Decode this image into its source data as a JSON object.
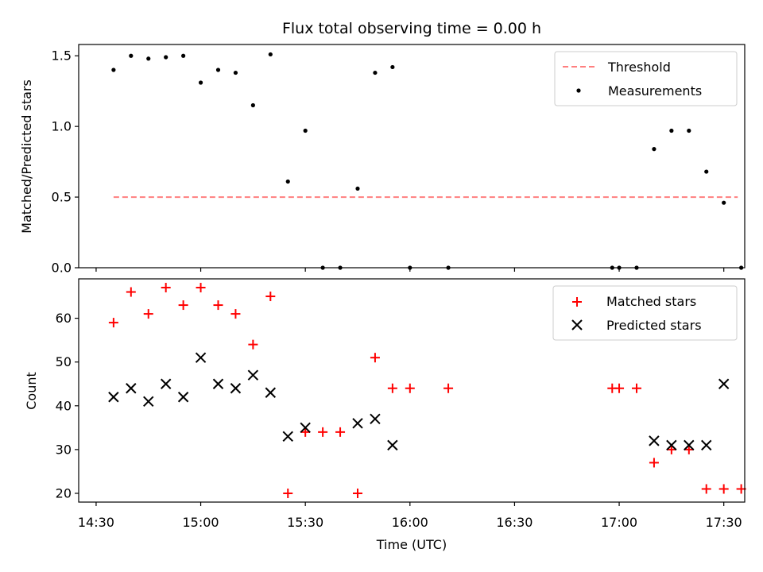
{
  "chart_data": [
    {
      "type": "scatter",
      "title": "Flux total observing time = 0.00 h",
      "xlabel": "",
      "ylabel": "Matched/Predicted stars",
      "ylim": [
        0,
        1.58
      ],
      "yticks": [
        "0.0",
        "0.5",
        "1.0",
        "1.5"
      ],
      "xlim": [
        "14:25",
        "17:36"
      ],
      "grid": false,
      "legend_position": "top-right",
      "series": [
        {
          "name": "Threshold",
          "kind": "dashed-line",
          "color": "#ff7f7f",
          "points": [
            [
              "14:35",
              0.5
            ],
            [
              "17:34",
              0.5
            ]
          ]
        },
        {
          "name": "Measurements",
          "kind": "dots",
          "color": "#000000",
          "points": [
            [
              "14:35",
              1.4
            ],
            [
              "14:40",
              1.5
            ],
            [
              "14:45",
              1.48
            ],
            [
              "14:50",
              1.49
            ],
            [
              "14:55",
              1.5
            ],
            [
              "15:00",
              1.31
            ],
            [
              "15:05",
              1.4
            ],
            [
              "15:10",
              1.38
            ],
            [
              "15:15",
              1.15
            ],
            [
              "15:20",
              1.51
            ],
            [
              "15:25",
              0.61
            ],
            [
              "15:30",
              0.97
            ],
            [
              "15:35",
              0.0
            ],
            [
              "15:40",
              0.0
            ],
            [
              "15:45",
              0.56
            ],
            [
              "15:50",
              1.38
            ],
            [
              "15:55",
              1.42
            ],
            [
              "16:00",
              0.0
            ],
            [
              "16:11",
              0.0
            ],
            [
              "16:58",
              0.0
            ],
            [
              "17:00",
              0.0
            ],
            [
              "17:05",
              0.0
            ],
            [
              "17:10",
              0.84
            ],
            [
              "17:15",
              0.97
            ],
            [
              "17:20",
              0.97
            ],
            [
              "17:25",
              0.68
            ],
            [
              "17:30",
              0.46
            ],
            [
              "17:35",
              0.0
            ]
          ]
        }
      ]
    },
    {
      "type": "scatter",
      "title": "",
      "xlabel": "Time (UTC)",
      "ylabel": "Count",
      "ylim": [
        18,
        69
      ],
      "yticks": [
        "20",
        "30",
        "40",
        "50",
        "60"
      ],
      "xlim": [
        "14:25",
        "17:36"
      ],
      "xticks": [
        "14:30",
        "15:00",
        "15:30",
        "16:00",
        "16:30",
        "17:00",
        "17:30"
      ],
      "grid": false,
      "legend_position": "top-right",
      "series": [
        {
          "name": "Matched stars",
          "kind": "plus",
          "color": "#ff0000",
          "points": [
            [
              "14:35",
              59
            ],
            [
              "14:40",
              66
            ],
            [
              "14:45",
              61
            ],
            [
              "14:50",
              67
            ],
            [
              "14:55",
              63
            ],
            [
              "15:00",
              67
            ],
            [
              "15:05",
              63
            ],
            [
              "15:10",
              61
            ],
            [
              "15:15",
              54
            ],
            [
              "15:20",
              65
            ],
            [
              "15:25",
              20
            ],
            [
              "15:30",
              34
            ],
            [
              "15:35",
              34
            ],
            [
              "15:40",
              34
            ],
            [
              "15:45",
              20
            ],
            [
              "15:50",
              51
            ],
            [
              "15:55",
              44
            ],
            [
              "16:00",
              44
            ],
            [
              "16:11",
              44
            ],
            [
              "16:58",
              44
            ],
            [
              "17:00",
              44
            ],
            [
              "17:05",
              44
            ],
            [
              "17:10",
              27
            ],
            [
              "17:15",
              30
            ],
            [
              "17:20",
              30
            ],
            [
              "17:25",
              21
            ],
            [
              "17:30",
              21
            ],
            [
              "17:35",
              21
            ]
          ]
        },
        {
          "name": "Predicted stars",
          "kind": "x",
          "color": "#000000",
          "points": [
            [
              "14:35",
              42
            ],
            [
              "14:40",
              44
            ],
            [
              "14:45",
              41
            ],
            [
              "14:50",
              45
            ],
            [
              "14:55",
              42
            ],
            [
              "15:00",
              51
            ],
            [
              "15:05",
              45
            ],
            [
              "15:10",
              44
            ],
            [
              "15:15",
              47
            ],
            [
              "15:20",
              43
            ],
            [
              "15:25",
              33
            ],
            [
              "15:30",
              35
            ],
            [
              "15:45",
              36
            ],
            [
              "15:50",
              37
            ],
            [
              "15:55",
              31
            ],
            [
              "17:10",
              32
            ],
            [
              "17:15",
              31
            ],
            [
              "17:20",
              31
            ],
            [
              "17:25",
              31
            ],
            [
              "17:30",
              45
            ]
          ]
        }
      ]
    }
  ]
}
